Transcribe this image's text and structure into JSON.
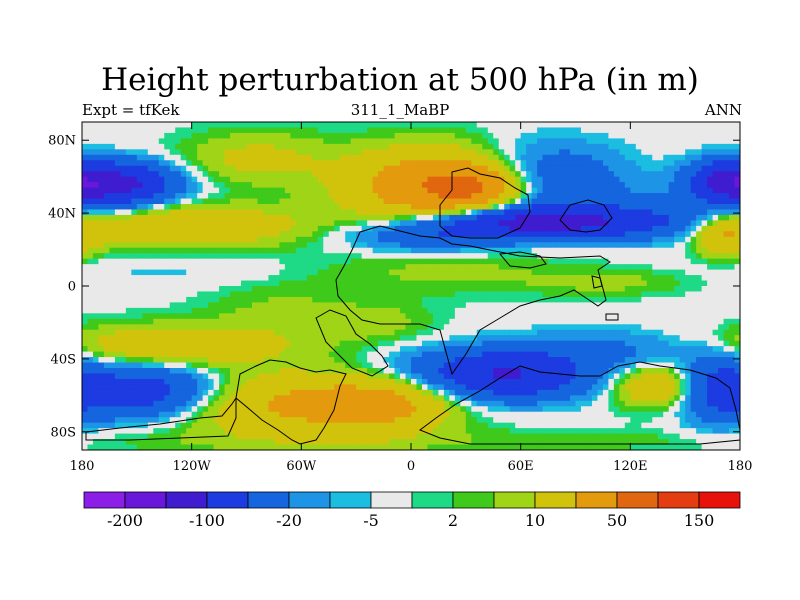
{
  "title": "Height perturbation at 500 hPa (in m)",
  "left_string": "Expt = tfKek",
  "center_string": "311_1_MaBP",
  "right_string": "ANN",
  "chart_data": {
    "type": "heatmap",
    "title": "Height perturbation at 500 hPa (in m)",
    "projection": "cylindrical-equidistant",
    "xlim": [
      -180,
      180
    ],
    "ylim": [
      -90,
      90
    ],
    "x_ticks": [
      {
        "value": -180,
        "label": "180"
      },
      {
        "value": -120,
        "label": "120W"
      },
      {
        "value": -60,
        "label": "60W"
      },
      {
        "value": 0,
        "label": "0"
      },
      {
        "value": 60,
        "label": "60E"
      },
      {
        "value": 120,
        "label": "120E"
      },
      {
        "value": 180,
        "label": "180"
      }
    ],
    "y_ticks": [
      {
        "value": 80,
        "label": "80N"
      },
      {
        "value": 40,
        "label": "40N"
      },
      {
        "value": 0,
        "label": "0"
      },
      {
        "value": -40,
        "label": "40S"
      },
      {
        "value": -80,
        "label": "80S"
      }
    ],
    "colorbar": {
      "placement": "bottom",
      "colors": [
        "#8b1fe8",
        "#6a17dc",
        "#3f1ccf",
        "#1c3be0",
        "#1565de",
        "#1e94e6",
        "#1bbde0",
        "#e9e9e9",
        "#1ed985",
        "#3fc91b",
        "#9fd417",
        "#d1c30c",
        "#e39a0c",
        "#e0660f",
        "#e43d12",
        "#e8120d"
      ],
      "tick_labels": [
        {
          "label": "-200",
          "boundary": 1
        },
        {
          "label": "-100",
          "boundary": 3
        },
        {
          "label": "-20",
          "boundary": 5
        },
        {
          "label": "-5",
          "boundary": 7
        },
        {
          "label": "2",
          "boundary": 9
        },
        {
          "label": "10",
          "boundary": 11
        },
        {
          "label": "50",
          "boundary": 13
        },
        {
          "label": "150",
          "boundary": 15
        }
      ]
    },
    "field_features": [
      {
        "lon": 15,
        "lat": 55,
        "value": 90,
        "sigma_lon": 34,
        "sigma_lat": 14
      },
      {
        "lon": 35,
        "lat": 54,
        "value": 60,
        "sigma_lon": 18,
        "sigma_lat": 8
      },
      {
        "lon": -125,
        "lat": 33,
        "value": 45,
        "sigma_lon": 48,
        "sigma_lat": 8
      },
      {
        "lon": -85,
        "lat": 70,
        "value": 25,
        "sigma_lon": 28,
        "sigma_lat": 10
      },
      {
        "lon": -162,
        "lat": 56,
        "value": -120,
        "sigma_lon": 22,
        "sigma_lat": 8
      },
      {
        "lon": 172,
        "lat": 58,
        "value": -80,
        "sigma_lon": 14,
        "sigma_lat": 8
      },
      {
        "lon": 72,
        "lat": 58,
        "value": -50,
        "sigma_lon": 30,
        "sigma_lat": 14
      },
      {
        "lon": 72,
        "lat": 35,
        "value": -120,
        "sigma_lon": 42,
        "sigma_lat": 6
      },
      {
        "lon": 10,
        "lat": 27,
        "value": -40,
        "sigma_lon": 32,
        "sigma_lat": 6
      },
      {
        "lon": 145,
        "lat": 38,
        "value": -25,
        "sigma_lon": 35,
        "sigma_lat": 10
      },
      {
        "lon": 172,
        "lat": 28,
        "value": 50,
        "sigma_lon": 12,
        "sigma_lat": 8
      },
      {
        "lon": 20,
        "lat": 8,
        "value": 12,
        "sigma_lon": 50,
        "sigma_lat": 9
      },
      {
        "lon": -130,
        "lat": 8,
        "value": -6,
        "sigma_lon": 45,
        "sigma_lat": 6
      },
      {
        "lon": -70,
        "lat": -15,
        "value": 12,
        "sigma_lon": 30,
        "sigma_lat": 12
      },
      {
        "lon": 110,
        "lat": 2,
        "value": 12,
        "sigma_lon": 30,
        "sigma_lat": 5
      },
      {
        "lon": -15,
        "lat": -20,
        "value": 12,
        "sigma_lon": 20,
        "sigma_lat": 8
      },
      {
        "lon": -135,
        "lat": -33,
        "value": 40,
        "sigma_lon": 48,
        "sigma_lat": 8
      },
      {
        "lon": -150,
        "lat": -58,
        "value": -80,
        "sigma_lon": 30,
        "sigma_lat": 10
      },
      {
        "lon": -65,
        "lat": -65,
        "value": 55,
        "sigma_lon": 45,
        "sigma_lat": 12
      },
      {
        "lon": -15,
        "lat": -65,
        "value": 45,
        "sigma_lon": 25,
        "sigma_lat": 10
      },
      {
        "lon": 35,
        "lat": -45,
        "value": -30,
        "sigma_lon": 35,
        "sigma_lat": 8
      },
      {
        "lon": 55,
        "lat": -50,
        "value": -80,
        "sigma_lon": 30,
        "sigma_lat": 9
      },
      {
        "lon": 110,
        "lat": -35,
        "value": -25,
        "sigma_lon": 40,
        "sigma_lat": 8
      },
      {
        "lon": 135,
        "lat": -55,
        "value": 45,
        "sigma_lon": 18,
        "sigma_lat": 8
      },
      {
        "lon": 168,
        "lat": -55,
        "value": -50,
        "sigma_lon": 14,
        "sigma_lat": 14
      },
      {
        "lon": 0,
        "lat": -85,
        "value": 8,
        "sigma_lon": 180,
        "sigma_lat": 5
      }
    ]
  }
}
